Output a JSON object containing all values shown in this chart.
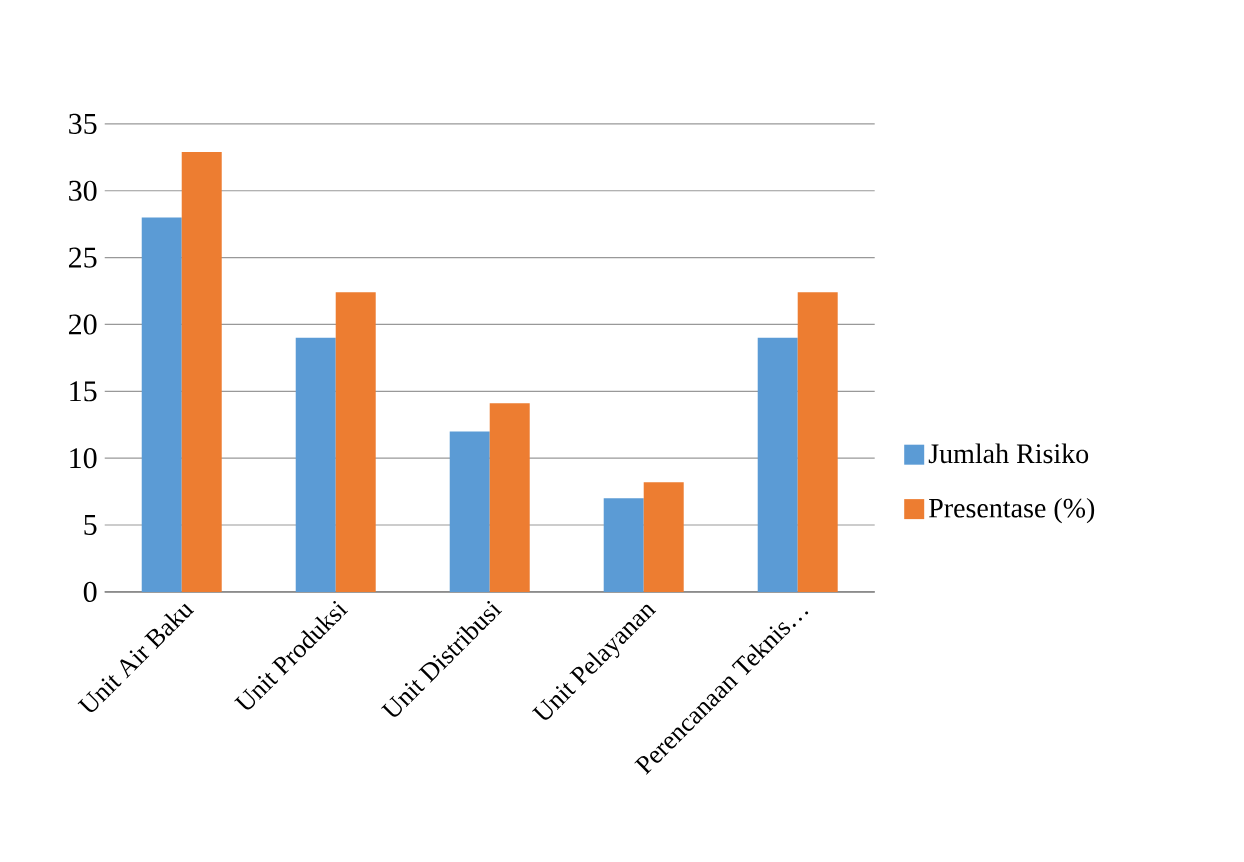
{
  "chart_data": {
    "type": "bar",
    "categories": [
      "Unit Air Baku",
      "Unit Produksi",
      "Unit Distribusi",
      "Unit Pelayanan",
      "Perencanaan Teknis…"
    ],
    "series": [
      {
        "name": "Jumlah Risiko",
        "color": "#5b9bd5",
        "values": [
          28,
          19,
          12,
          7,
          19
        ]
      },
      {
        "name": "Presentase (%)",
        "color": "#ed7d31",
        "values": [
          32.9,
          22.4,
          14.1,
          8.2,
          22.4
        ]
      }
    ],
    "ylim": [
      0,
      35
    ],
    "yticks": [
      0,
      5,
      10,
      15,
      20,
      25,
      30,
      35
    ],
    "grid": "y",
    "legend": "right"
  }
}
